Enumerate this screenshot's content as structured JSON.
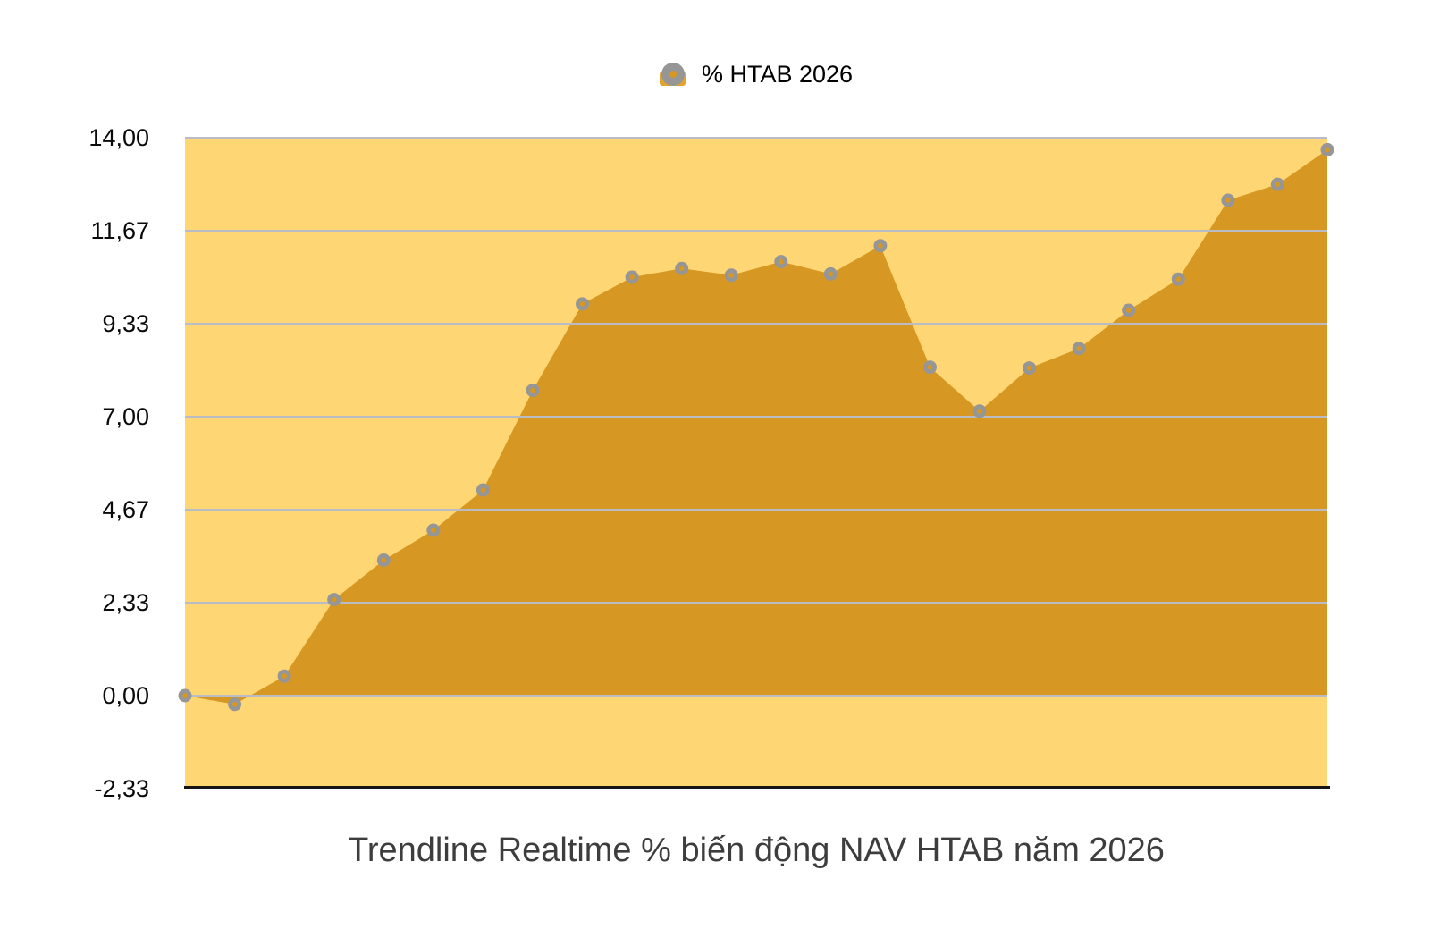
{
  "legend": {
    "label": "% HTAB 2026"
  },
  "title": "Trendline Realtime % biến động NAV HTAB năm 2026",
  "chart_data": {
    "type": "area",
    "title": "Trendline Realtime % biến động NAV HTAB năm 2026",
    "legend_entries": [
      "% HTAB 2026"
    ],
    "legend_position": "top-center",
    "series": [
      {
        "name": "% HTAB 2026",
        "values": [
          0.0,
          -0.22,
          0.49,
          2.41,
          3.4,
          4.15,
          5.16,
          7.66,
          9.83,
          10.5,
          10.72,
          10.55,
          10.89,
          10.58,
          11.29,
          8.24,
          7.14,
          8.22,
          8.71,
          9.67,
          10.45,
          12.43,
          12.83,
          13.7
        ]
      }
    ],
    "x_tick_labels_visible": false,
    "y_ticks": [
      {
        "label": "14,00",
        "value": 14
      },
      {
        "label": "11,67",
        "value": 11.667
      },
      {
        "label": "9,33",
        "value": 9.333
      },
      {
        "label": "7,00",
        "value": 7
      },
      {
        "label": "4,67",
        "value": 4.667
      },
      {
        "label": "2,33",
        "value": 2.333
      },
      {
        "label": "0,00",
        "value": 0
      },
      {
        "label": "-2,33",
        "value": -2.333
      }
    ],
    "ylim": [
      -2.333,
      14
    ],
    "area_baseline": 0,
    "grid": "horizontal",
    "colors": {
      "plot_background": "#FFD674",
      "area_fill": "#D69822",
      "marker": "#969696",
      "marker_center": "#D69822",
      "gridline": "#B9BCC4",
      "axis_line": "#141414",
      "legend_swatch": "#E2A42F",
      "tick_text": "#0A0A0A",
      "title_text": "#3D3D3D"
    }
  }
}
